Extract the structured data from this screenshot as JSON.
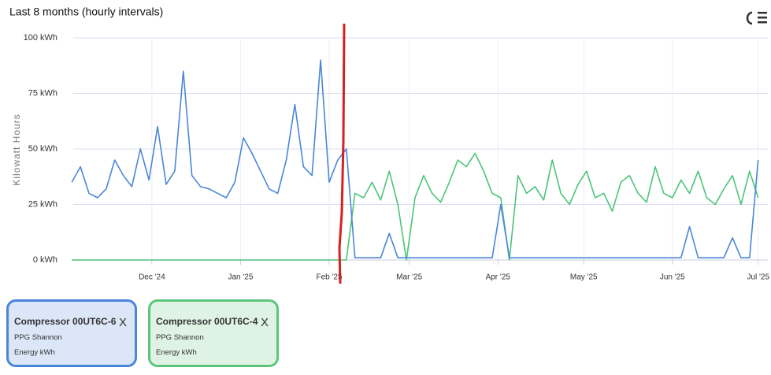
{
  "chart_data": {
    "type": "line",
    "title": "Last 8 months (hourly intervals)",
    "y_label": "Kilowatt Hours",
    "x": [
      2,
      5,
      8,
      11,
      14,
      17,
      20,
      23,
      26,
      29,
      32,
      35,
      38,
      41,
      44,
      47,
      50,
      53,
      56,
      59,
      62,
      65,
      68,
      71,
      74,
      77,
      80,
      83,
      86,
      89,
      92,
      95,
      98,
      101,
      104,
      107,
      110,
      113,
      116,
      119,
      122,
      125,
      128,
      131,
      134,
      137,
      140,
      143,
      146,
      149,
      152,
      155,
      158,
      161,
      164,
      167,
      170,
      173,
      176,
      179,
      182,
      185,
      188,
      191,
      194,
      197,
      200,
      203,
      206,
      209,
      212,
      215,
      218,
      221,
      224,
      227,
      230,
      233,
      236,
      239,
      242
    ],
    "xlim": [
      2.5,
      244
    ],
    "xticks": [
      {
        "value": 30,
        "label": "Dec '24"
      },
      {
        "value": 61,
        "label": "Jan '25"
      },
      {
        "value": 92,
        "label": "Feb '25"
      },
      {
        "value": 120,
        "label": "Mar '25"
      },
      {
        "value": 151,
        "label": "Apr '25"
      },
      {
        "value": 181,
        "label": "May '25"
      },
      {
        "value": 212,
        "label": "Jun '25"
      },
      {
        "value": 242,
        "label": "Jul '25"
      }
    ],
    "ylim": [
      0,
      100
    ],
    "yticks": [
      {
        "value": 0,
        "label": "0 kWh"
      },
      {
        "value": 25,
        "label": "25 kWh"
      },
      {
        "value": 50,
        "label": "50 kWh"
      },
      {
        "value": 75,
        "label": "75 kWh"
      },
      {
        "value": 100,
        "label": "100 kWh"
      }
    ],
    "grid": true,
    "series": [
      {
        "name": "Compressor 00UT6C-6",
        "site": "PPG Shannon",
        "unit": "Energy kWh",
        "remove": "X",
        "color": "#4a86d8",
        "values": [
          35,
          42,
          30,
          28,
          32,
          45,
          38,
          33,
          50,
          36,
          60,
          34,
          40,
          85,
          38,
          33,
          32,
          30,
          28,
          35,
          55,
          48,
          40,
          32,
          30,
          45,
          70,
          42,
          38,
          90,
          35,
          45,
          50,
          1,
          1,
          1,
          1,
          12,
          1,
          1,
          1,
          1,
          1,
          1,
          1,
          1,
          1,
          1,
          1,
          1,
          25,
          1,
          1,
          1,
          1,
          1,
          1,
          1,
          1,
          1,
          1,
          1,
          1,
          1,
          1,
          1,
          1,
          1,
          1,
          1,
          1,
          1,
          15,
          1,
          1,
          1,
          1,
          10,
          1,
          1,
          45
        ]
      },
      {
        "name": "Compressor 00UT6C-4",
        "site": "PPG Shannon",
        "unit": "Energy kWh",
        "remove": "X",
        "color": "#4cc47a",
        "values": [
          0,
          0,
          0,
          0,
          0,
          0,
          0,
          0,
          0,
          0,
          0,
          0,
          0,
          0,
          0,
          0,
          0,
          0,
          0,
          0,
          0,
          0,
          0,
          0,
          0,
          0,
          0,
          0,
          0,
          0,
          0,
          0,
          0,
          30,
          28,
          35,
          27,
          40,
          25,
          0,
          28,
          38,
          30,
          26,
          35,
          45,
          42,
          48,
          40,
          30,
          28,
          0,
          38,
          30,
          33,
          27,
          45,
          30,
          25,
          34,
          40,
          28,
          30,
          22,
          35,
          38,
          30,
          26,
          42,
          30,
          28,
          36,
          30,
          40,
          28,
          25,
          32,
          38,
          25,
          40,
          28
        ]
      }
    ]
  }
}
